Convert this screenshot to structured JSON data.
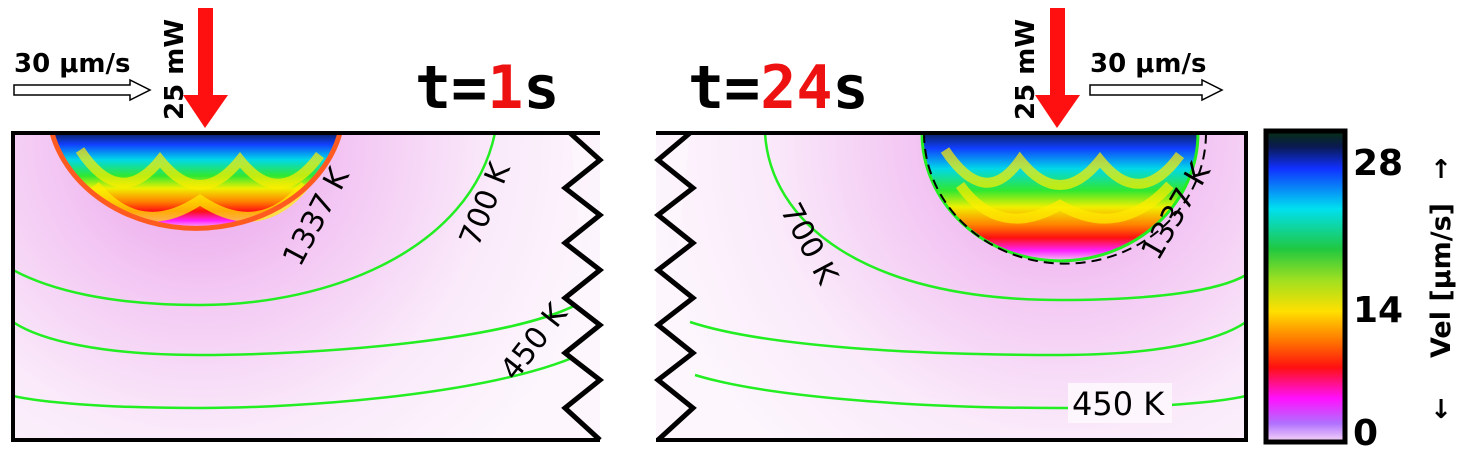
{
  "left_panel": {
    "time_prefix": "t=",
    "time_value": "1",
    "time_unit": "s",
    "laser_power": "25 mW",
    "scan_speed": "30 μm/s",
    "contours": {
      "melt": "1337 K",
      "mid": "700 K",
      "low": "450 K"
    }
  },
  "right_panel": {
    "time_prefix": "t=",
    "time_value": "24",
    "time_unit": "s",
    "laser_power": "25 mW",
    "scan_speed": "30 μm/s",
    "contours": {
      "melt": "1337 K",
      "mid": "700 K",
      "low": "450 K"
    }
  },
  "colorbar": {
    "title": "Vel [μm/s]",
    "ticks": [
      "28",
      "14",
      "0"
    ],
    "arrow_up": "↑",
    "arrow_down": "↓"
  },
  "colors": {
    "laser_arrow": "#ff1010",
    "time_highlight": "#ee1111",
    "isotherm": "#22ee22",
    "background_tint": "#f0b8f0"
  }
}
